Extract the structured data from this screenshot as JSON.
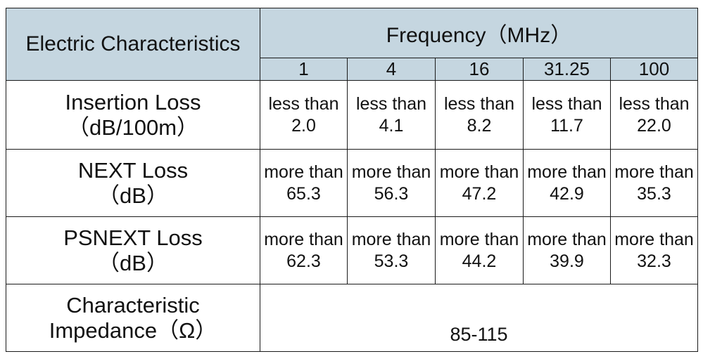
{
  "table": {
    "header": {
      "characteristics": "Electric Characteristics",
      "frequency": "Frequency（MHz）",
      "frequencies": [
        "1",
        "4",
        "16",
        "31.25",
        "100"
      ]
    },
    "rows": [
      {
        "label": [
          "Insertion Loss",
          "（dB/100m）"
        ],
        "qualifier": "less than",
        "values": [
          "2.0",
          "4.1",
          "8.2",
          "11.7",
          "22.0"
        ]
      },
      {
        "label": [
          "NEXT Loss",
          "（dB）"
        ],
        "qualifier": "more than",
        "values": [
          "65.3",
          "56.3",
          "47.2",
          "42.9",
          "35.3"
        ]
      },
      {
        "label": [
          "PSNEXT Loss",
          "（dB）"
        ],
        "qualifier": "more than",
        "values": [
          "62.3",
          "53.3",
          "44.2",
          "39.9",
          "32.3"
        ]
      },
      {
        "label": [
          "Characteristic",
          "Impedance（Ω）"
        ],
        "value": "85-115"
      }
    ]
  }
}
